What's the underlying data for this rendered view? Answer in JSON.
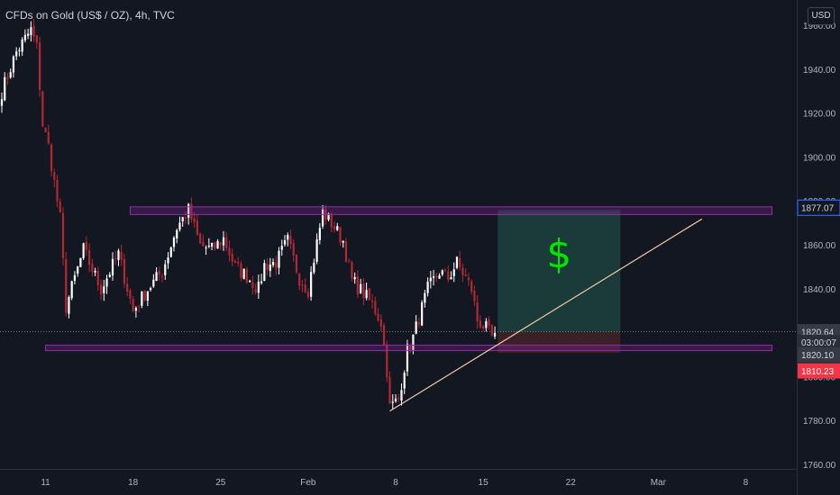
{
  "header": {
    "title": "CFDs on Gold (US$ / OZ), 4h, TVC",
    "currency": "USD"
  },
  "colors": {
    "background": "#131722",
    "up": "#ffffff",
    "down": "#b22833",
    "zone": "#9c27b0",
    "trendline": "#f5cba7",
    "target_fill": "#1b3d3c",
    "stop_fill": "#3c2228",
    "dollar": "#00e600",
    "price_tag": "#2962ff",
    "red_tag": "#f23645",
    "axis_text": "#b2b5be"
  },
  "chart_data": {
    "type": "candlestick",
    "title": "CFDs on Gold (US$ / OZ), 4h, TVC",
    "ylim": [
      1755,
      1965
    ],
    "yticks": [
      "1760.00",
      "1780.00",
      "1800.00",
      "1820.00",
      "1840.00",
      "1860.00",
      "1880.00",
      "1900.00",
      "1920.00",
      "1940.00",
      "1960.00"
    ],
    "xticks": [
      {
        "label": "11",
        "i": 15
      },
      {
        "label": "18",
        "i": 45
      },
      {
        "label": "25",
        "i": 75
      },
      {
        "label": "Feb",
        "i": 105
      },
      {
        "label": "8",
        "i": 135
      },
      {
        "label": "15",
        "i": 165
      },
      {
        "label": "22",
        "i": 195
      },
      {
        "label": "Mar",
        "i": 225
      },
      {
        "label": "8",
        "i": 255
      }
    ],
    "close_anchors": [
      [
        0,
        1930
      ],
      [
        5,
        1948
      ],
      [
        10,
        1958
      ],
      [
        12,
        1950
      ],
      [
        14,
        1915
      ],
      [
        16,
        1905
      ],
      [
        20,
        1872
      ],
      [
        22,
        1832
      ],
      [
        28,
        1858
      ],
      [
        34,
        1840
      ],
      [
        40,
        1856
      ],
      [
        45,
        1830
      ],
      [
        50,
        1840
      ],
      [
        55,
        1848
      ],
      [
        60,
        1868
      ],
      [
        64,
        1876
      ],
      [
        68,
        1860
      ],
      [
        72,
        1858
      ],
      [
        76,
        1863
      ],
      [
        80,
        1850
      ],
      [
        84,
        1846
      ],
      [
        88,
        1840
      ],
      [
        90,
        1851
      ],
      [
        94,
        1852
      ],
      [
        98,
        1862
      ],
      [
        102,
        1845
      ],
      [
        105,
        1840
      ],
      [
        110,
        1875
      ],
      [
        113,
        1870
      ],
      [
        117,
        1862
      ],
      [
        120,
        1844
      ],
      [
        124,
        1838
      ],
      [
        127,
        1833
      ],
      [
        130,
        1825
      ],
      [
        132,
        1803
      ],
      [
        133,
        1786
      ],
      [
        136,
        1790
      ],
      [
        139,
        1812
      ],
      [
        141,
        1818
      ],
      [
        143,
        1827
      ],
      [
        146,
        1840
      ],
      [
        150,
        1848
      ],
      [
        153,
        1845
      ],
      [
        156,
        1852
      ],
      [
        159,
        1845
      ],
      [
        161,
        1840
      ],
      [
        163,
        1826
      ],
      [
        166,
        1822
      ],
      [
        168,
        1818
      ],
      [
        169,
        1820.1
      ]
    ],
    "support_zone": {
      "low": 1812,
      "high": 1814.5,
      "from_i": 15,
      "to_i": 264
    },
    "resistance_zone": {
      "low": 1874,
      "high": 1877.5,
      "from_i": 44,
      "to_i": 264
    },
    "trendline": {
      "from": {
        "i": 133,
        "price": 1784.5
      },
      "to": {
        "i": 240,
        "price": 1872
      }
    },
    "position": {
      "entry": 1820.64,
      "target": 1876,
      "stop": 1811,
      "from_i": 170,
      "to_i": 212
    }
  },
  "price_tags": [
    {
      "price": 1877.07,
      "label": "1877.07",
      "style": "outline"
    },
    {
      "price": 1820.64,
      "label": "1820.64",
      "style": "gray"
    },
    {
      "price": 1815.8,
      "label": "03:00:07",
      "style": "dark"
    },
    {
      "price": 1810.1,
      "label": "1820.10",
      "style": "gray"
    },
    {
      "price": 1802.8,
      "label": "1810.23",
      "style": "red"
    }
  ],
  "annotation": "$"
}
